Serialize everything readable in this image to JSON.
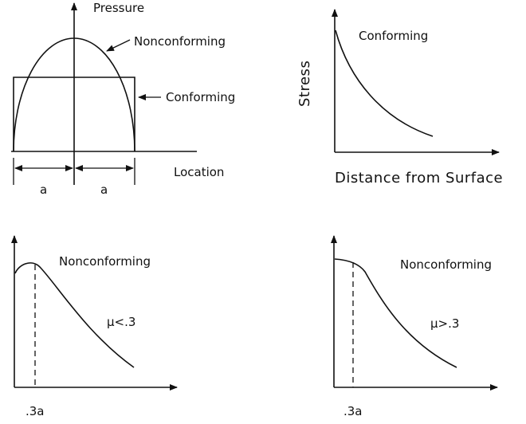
{
  "panel_pressure": {
    "y_axis_label": "Pressure",
    "x_axis_label": "Location",
    "curve_labels": {
      "nonconforming": "Nonconforming",
      "conforming": "Conforming"
    },
    "dimension_labels": {
      "left_half": "a",
      "right_half": "a"
    }
  },
  "panel_stress_conforming": {
    "y_axis_label": "Stress",
    "x_axis_label": "Distance from Surface",
    "curve_label": "Conforming"
  },
  "panel_low_friction": {
    "curve_label": "Nonconforming",
    "friction_label": "μ<.3",
    "tick_label": ".3a"
  },
  "panel_high_friction": {
    "curve_label": "Nonconforming",
    "friction_label": "μ>.3",
    "tick_label": ".3a"
  }
}
